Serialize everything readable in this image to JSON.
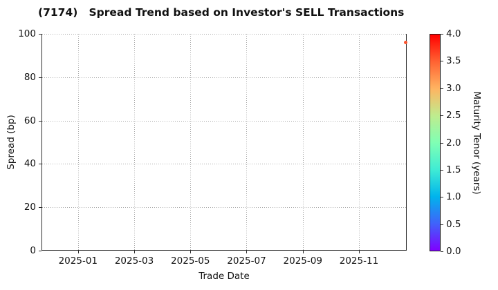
{
  "chart_data": {
    "type": "scatter",
    "title": "(7174)   Spread Trend based on Investor's SELL Transactions",
    "xlabel": "Trade Date",
    "ylabel": "Spread (bp)",
    "x_ticks": [
      {
        "label": "2025-01",
        "month": 0
      },
      {
        "label": "2025-03",
        "month": 2
      },
      {
        "label": "2025-05",
        "month": 4
      },
      {
        "label": "2025-07",
        "month": 6
      },
      {
        "label": "2025-09",
        "month": 8
      },
      {
        "label": "2025-11",
        "month": 10
      }
    ],
    "xlim_months": [
      -1.3,
      11.7
    ],
    "y_ticks": [
      0,
      20,
      40,
      60,
      80,
      100
    ],
    "ylim": [
      0,
      100
    ],
    "grid": true,
    "grid_style": "dotted",
    "points": [
      {
        "trade_date_approx": "2025-11-20",
        "month": 11.66,
        "spread_bp": 96,
        "maturity_tenor_years": 3.5,
        "color": "#fb5530"
      }
    ],
    "colorbar": {
      "label": "Maturity Tenor (years)",
      "min": 0.0,
      "max": 4.0,
      "ticks": [
        0.0,
        0.5,
        1.0,
        1.5,
        2.0,
        2.5,
        3.0,
        3.5,
        4.0
      ],
      "colormap": "rainbow",
      "gradient_stops": [
        {
          "t": 0.0,
          "color": "#8000ff"
        },
        {
          "t": 0.125,
          "color": "#4062fa"
        },
        {
          "t": 0.25,
          "color": "#00b4ec"
        },
        {
          "t": 0.375,
          "color": "#40ecd4"
        },
        {
          "t": 0.5,
          "color": "#80ffb4"
        },
        {
          "t": 0.625,
          "color": "#bfec8e"
        },
        {
          "t": 0.75,
          "color": "#ffb461"
        },
        {
          "t": 0.875,
          "color": "#ff6232"
        },
        {
          "t": 1.0,
          "color": "#ff0000"
        }
      ]
    }
  }
}
